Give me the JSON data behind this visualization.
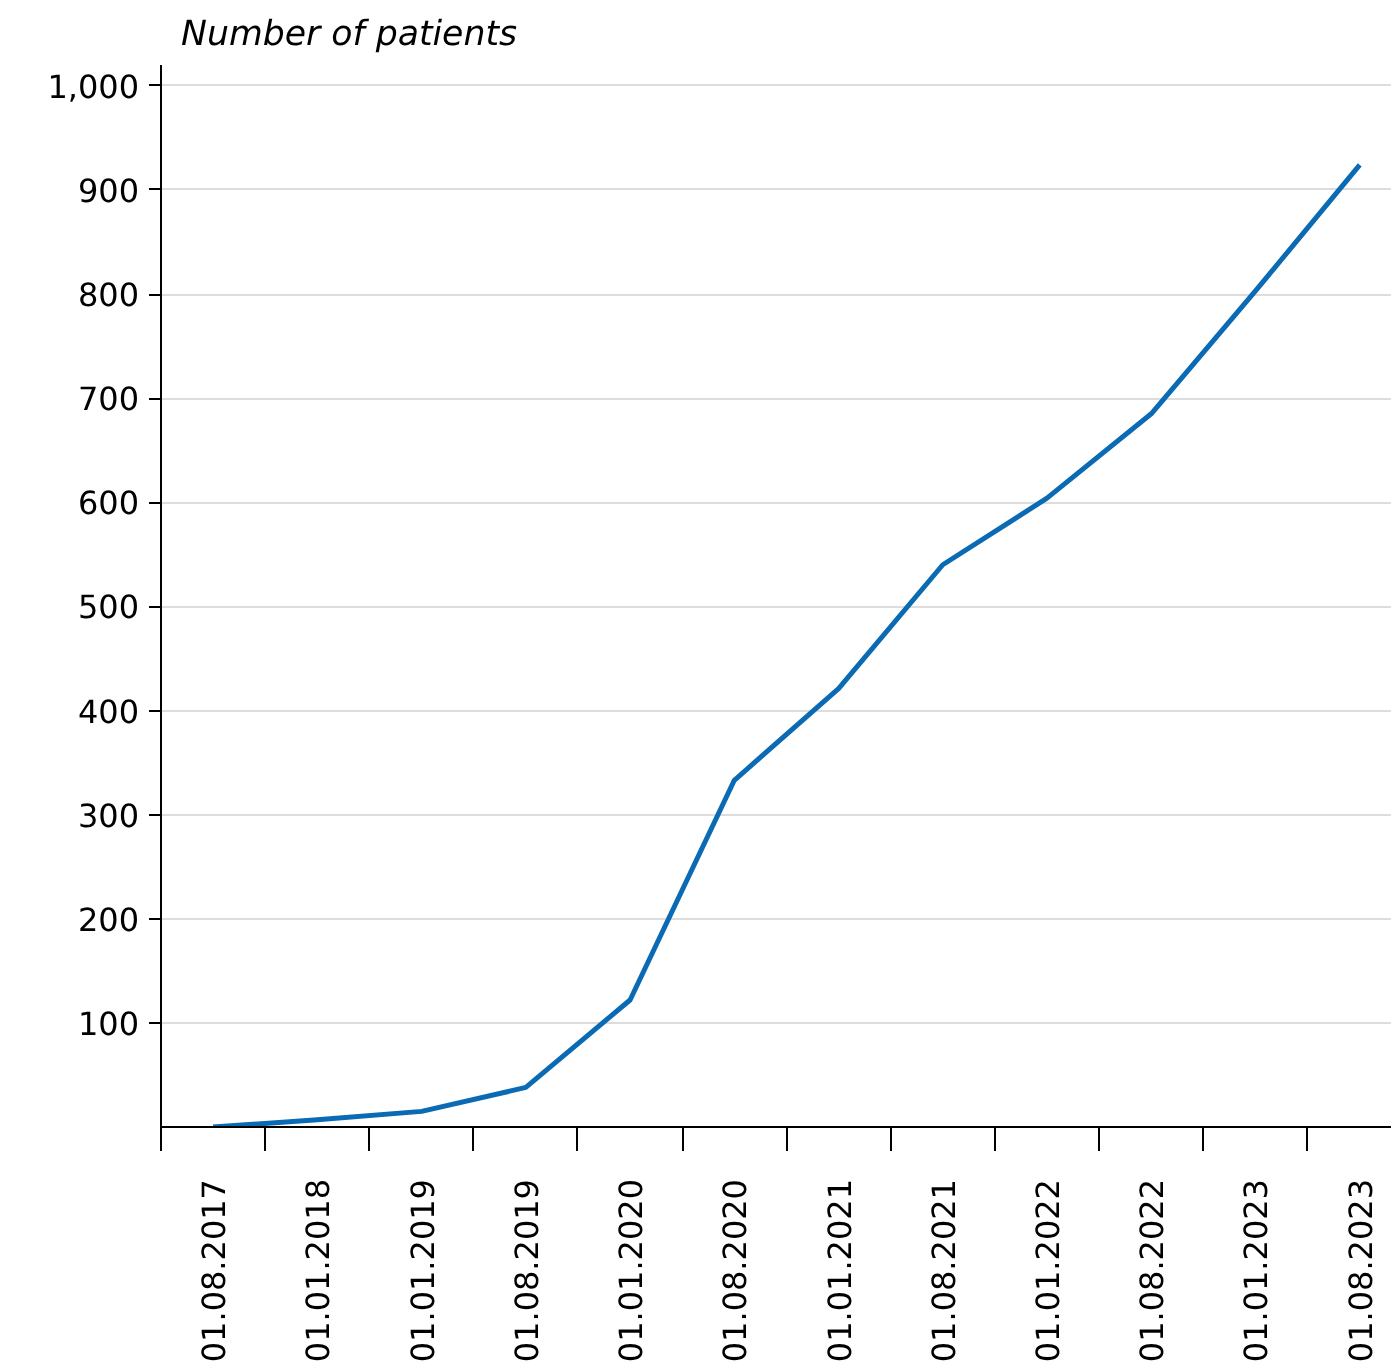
{
  "chart_data": {
    "type": "line",
    "ylabel": "Number of patients",
    "categories": [
      "01.08.2017",
      "01.01.2018",
      "01.01.2019",
      "01.08.2019",
      "01.01.2020",
      "01.08.2020",
      "01.01.2021",
      "01.08.2021",
      "01.01.2022",
      "01.08.2022",
      "01.01.2023",
      "01.08.2023"
    ],
    "series": [
      {
        "color": "#0a6ab4",
        "values": [
          0,
          7,
          15,
          38,
          122,
          333,
          421,
          540,
          604,
          685,
          803,
          924
        ]
      }
    ],
    "ylim": [
      0,
      1020
    ],
    "yticks": [
      100,
      200,
      300,
      400,
      500,
      600,
      700,
      800,
      900,
      {
        "value": 1000,
        "label": "1,000"
      }
    ],
    "grid": "y",
    "marker": "none",
    "line_style": "solid"
  }
}
